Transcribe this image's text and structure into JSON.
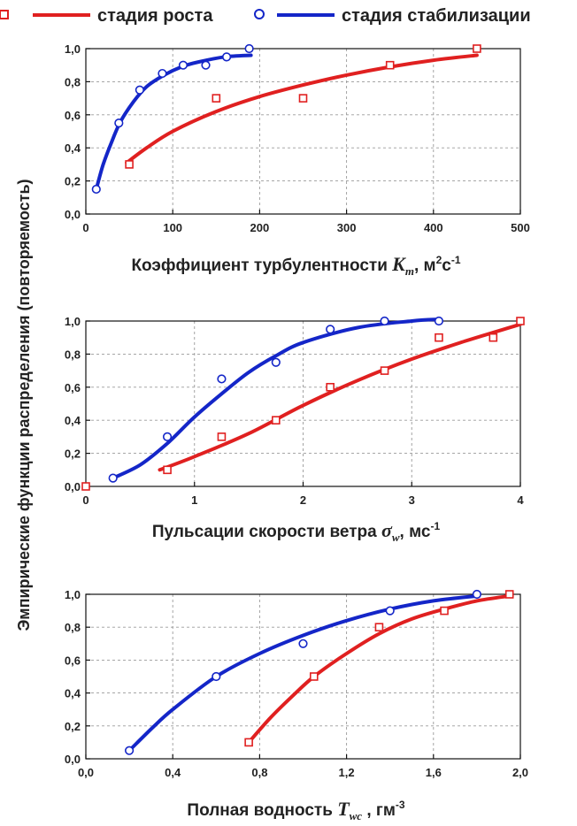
{
  "legend": {
    "growth_label": "стадия роста",
    "stabilization_label": "стадия стабилизации"
  },
  "colors": {
    "growth": "#e02020",
    "stabilization": "#1426c8"
  },
  "y_axis_title": "Эмпирические функции распределения (повторяемость)",
  "chart_data": [
    {
      "type": "scatter",
      "title": "",
      "xlabel": {
        "text": "Коэффициент турбулентности",
        "symbol": "K",
        "subscript": "m",
        "unit_prefix": ", м",
        "unit_sup1": "2",
        "unit_mid": "с",
        "unit_sup2": "-1"
      },
      "ylabel": "",
      "xlim": [
        0,
        500
      ],
      "ylim": [
        0,
        1.0
      ],
      "x_ticks": [
        0,
        100,
        200,
        300,
        400,
        500
      ],
      "x_tick_labels": [
        "0",
        "100",
        "200",
        "300",
        "400",
        "500"
      ],
      "y_ticks": [
        0,
        0.2,
        0.4,
        0.6,
        0.8,
        1.0
      ],
      "y_tick_labels": [
        "0,0",
        "0,2",
        "0,4",
        "0,6",
        "0,8",
        "1,0"
      ],
      "grid": true,
      "series": [
        {
          "name": "стадия роста",
          "marker": "square",
          "points": [
            [
              50,
              0.3
            ],
            [
              150,
              0.7
            ],
            [
              250,
              0.7
            ],
            [
              350,
              0.9
            ],
            [
              450,
              1.0
            ]
          ],
          "fit": [
            [
              47,
              0.31
            ],
            [
              70,
              0.4
            ],
            [
              100,
              0.5
            ],
            [
              150,
              0.62
            ],
            [
              200,
              0.71
            ],
            [
              250,
              0.78
            ],
            [
              300,
              0.84
            ],
            [
              350,
              0.89
            ],
            [
              400,
              0.93
            ],
            [
              450,
              0.96
            ]
          ]
        },
        {
          "name": "стадия стабилизации",
          "marker": "circle",
          "points": [
            [
              12,
              0.15
            ],
            [
              38,
              0.55
            ],
            [
              62,
              0.75
            ],
            [
              88,
              0.85
            ],
            [
              112,
              0.9
            ],
            [
              138,
              0.9
            ],
            [
              162,
              0.95
            ],
            [
              188,
              1.0
            ]
          ],
          "fit": [
            [
              12,
              0.15
            ],
            [
              20,
              0.3
            ],
            [
              30,
              0.44
            ],
            [
              40,
              0.56
            ],
            [
              55,
              0.68
            ],
            [
              70,
              0.77
            ],
            [
              90,
              0.84
            ],
            [
              110,
              0.89
            ],
            [
              130,
              0.92
            ],
            [
              160,
              0.95
            ],
            [
              190,
              0.96
            ]
          ]
        }
      ]
    },
    {
      "type": "scatter",
      "title": "",
      "xlabel": {
        "text": "Пульсации скорости ветра",
        "symbol": "σ",
        "subscript": "w",
        "unit_prefix": ", мс",
        "unit_sup1": "",
        "unit_mid": "",
        "unit_sup2": "-1"
      },
      "ylabel": "",
      "xlim": [
        0,
        4
      ],
      "ylim": [
        0,
        1.0
      ],
      "x_ticks": [
        0,
        1,
        2,
        3,
        4
      ],
      "x_tick_labels": [
        "0",
        "1",
        "2",
        "3",
        "4"
      ],
      "y_ticks": [
        0,
        0.2,
        0.4,
        0.6,
        0.8,
        1.0
      ],
      "y_tick_labels": [
        "0,0",
        "0,2",
        "0,4",
        "0,6",
        "0,8",
        "1,0"
      ],
      "grid": true,
      "series": [
        {
          "name": "стадия роста",
          "marker": "square",
          "points": [
            [
              0,
              0.0
            ],
            [
              0.75,
              0.1
            ],
            [
              1.25,
              0.3
            ],
            [
              1.75,
              0.4
            ],
            [
              2.25,
              0.6
            ],
            [
              2.75,
              0.7
            ],
            [
              3.25,
              0.9
            ],
            [
              3.75,
              0.9
            ],
            [
              4.0,
              1.0
            ]
          ],
          "fit": [
            [
              0.68,
              0.1
            ],
            [
              1.0,
              0.18
            ],
            [
              1.5,
              0.32
            ],
            [
              2.0,
              0.49
            ],
            [
              2.5,
              0.64
            ],
            [
              3.0,
              0.77
            ],
            [
              3.5,
              0.88
            ],
            [
              4.0,
              0.98
            ]
          ]
        },
        {
          "name": "стадия стабилизации",
          "marker": "circle",
          "points": [
            [
              0.25,
              0.05
            ],
            [
              0.75,
              0.3
            ],
            [
              1.25,
              0.65
            ],
            [
              1.75,
              0.75
            ],
            [
              2.25,
              0.95
            ],
            [
              2.75,
              1.0
            ],
            [
              3.25,
              1.0
            ]
          ],
          "fit": [
            [
              0.25,
              0.05
            ],
            [
              0.5,
              0.13
            ],
            [
              0.75,
              0.26
            ],
            [
              1.0,
              0.42
            ],
            [
              1.25,
              0.56
            ],
            [
              1.5,
              0.69
            ],
            [
              1.75,
              0.79
            ],
            [
              2.0,
              0.87
            ],
            [
              2.5,
              0.96
            ],
            [
              3.0,
              1.0
            ],
            [
              3.25,
              1.01
            ]
          ]
        }
      ]
    },
    {
      "type": "scatter",
      "title": "",
      "xlabel": {
        "text": "Полная водность",
        "symbol": "T",
        "subscript": "wc",
        "unit_prefix": " , гм",
        "unit_sup1": "",
        "unit_mid": "",
        "unit_sup2": "-3"
      },
      "ylabel": "",
      "xlim": [
        0,
        2.0
      ],
      "ylim": [
        0,
        1.0
      ],
      "x_ticks": [
        0,
        0.4,
        0.8,
        1.2,
        1.6,
        2.0
      ],
      "x_tick_labels": [
        "0,0",
        "0,4",
        "0,8",
        "1,2",
        "1,6",
        "2,0"
      ],
      "y_ticks": [
        0,
        0.2,
        0.4,
        0.6,
        0.8,
        1.0
      ],
      "y_tick_labels": [
        "0,0",
        "0,2",
        "0,4",
        "0,6",
        "0,8",
        "1,0"
      ],
      "grid": true,
      "series": [
        {
          "name": "стадия роста",
          "marker": "square",
          "points": [
            [
              0.75,
              0.1
            ],
            [
              1.05,
              0.5
            ],
            [
              1.35,
              0.8
            ],
            [
              1.65,
              0.9
            ],
            [
              1.95,
              1.0
            ]
          ],
          "fit": [
            [
              0.75,
              0.1
            ],
            [
              0.85,
              0.25
            ],
            [
              0.95,
              0.38
            ],
            [
              1.05,
              0.5
            ],
            [
              1.2,
              0.64
            ],
            [
              1.35,
              0.76
            ],
            [
              1.5,
              0.85
            ],
            [
              1.65,
              0.91
            ],
            [
              1.8,
              0.96
            ],
            [
              1.95,
              0.99
            ]
          ]
        },
        {
          "name": "стадия стабилизации",
          "marker": "circle",
          "points": [
            [
              0.2,
              0.05
            ],
            [
              0.6,
              0.5
            ],
            [
              1.0,
              0.7
            ],
            [
              1.4,
              0.9
            ],
            [
              1.8,
              1.0
            ]
          ],
          "fit": [
            [
              0.2,
              0.05
            ],
            [
              0.3,
              0.18
            ],
            [
              0.4,
              0.3
            ],
            [
              0.6,
              0.5
            ],
            [
              0.8,
              0.64
            ],
            [
              1.0,
              0.75
            ],
            [
              1.2,
              0.84
            ],
            [
              1.4,
              0.91
            ],
            [
              1.6,
              0.96
            ],
            [
              1.8,
              0.99
            ]
          ]
        }
      ]
    }
  ]
}
